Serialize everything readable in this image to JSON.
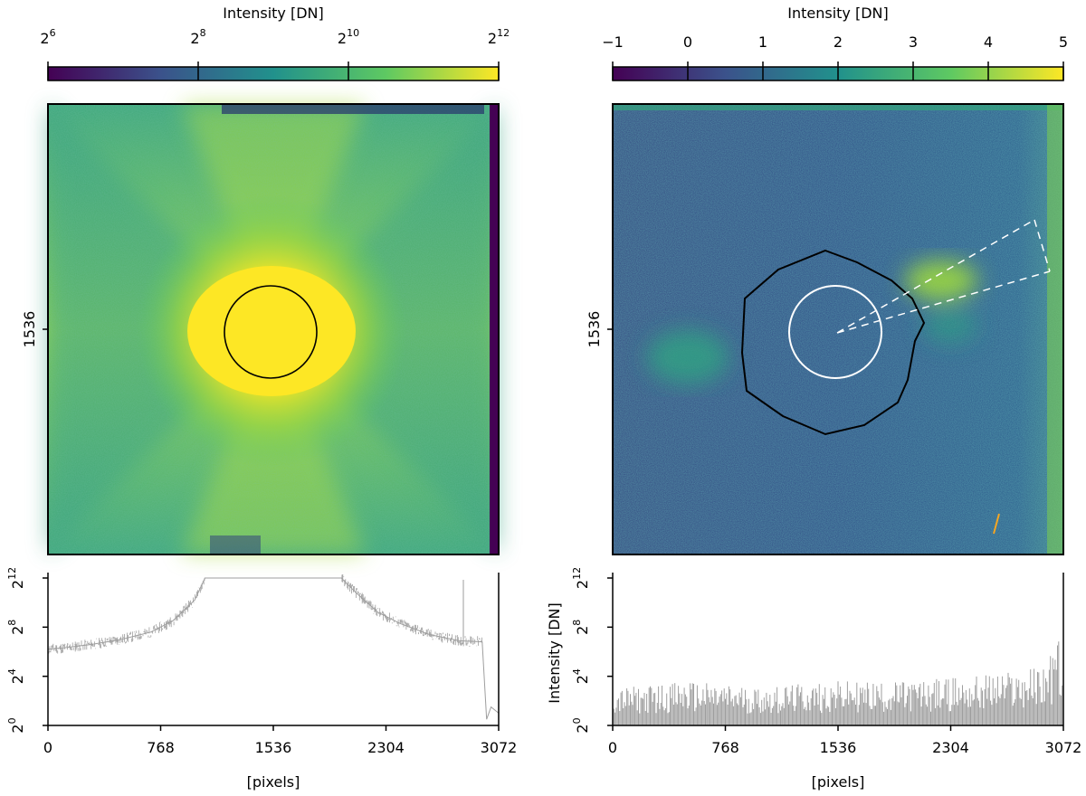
{
  "chart_data": [
    {
      "type": "heatmap",
      "id": "left-image",
      "colorbar": {
        "label": "Intensity [DN]",
        "scale": "log2",
        "range": [
          64,
          4096
        ],
        "ticks": [
          {
            "base": "2",
            "exp": "6",
            "value": 6
          },
          {
            "base": "2",
            "exp": "8",
            "value": 8
          },
          {
            "base": "2",
            "exp": "10",
            "value": 10
          },
          {
            "base": "2",
            "exp": "12",
            "value": 12
          }
        ],
        "colormap": [
          "#440154",
          "#3b528b",
          "#21918c",
          "#5ec962",
          "#fde725"
        ]
      },
      "yticks": [
        "1536"
      ],
      "xlim": [
        0,
        3072
      ],
      "ylim": [
        0,
        3072
      ],
      "annotations": [
        "black circle centered at (1536, 1536)"
      ]
    },
    {
      "type": "line",
      "id": "left-profile",
      "xlabel": "[pixels]",
      "ylabel": "",
      "xticks": [
        "0",
        "768",
        "1536",
        "2304",
        "3072"
      ],
      "yticks": [
        {
          "base": "2",
          "exp": "0",
          "value": 0
        },
        {
          "base": "2",
          "exp": "4",
          "value": 4
        },
        {
          "base": "2",
          "exp": "8",
          "value": 8
        },
        {
          "base": "2",
          "exp": "12",
          "value": 12
        }
      ],
      "xlim": [
        0,
        3072
      ],
      "ylim_log2": [
        0,
        12
      ],
      "series": [
        {
          "name": "profile",
          "color": "#9e9e9e",
          "x": [
            0,
            100,
            300,
            500,
            700,
            850,
            1000,
            1070,
            2000,
            2100,
            2250,
            2400,
            2600,
            2800,
            2960,
            2990,
            3020,
            3072
          ],
          "y_log2": [
            6.2,
            6.3,
            6.6,
            7.0,
            7.6,
            8.5,
            10.2,
            12.0,
            12.0,
            10.8,
            9.2,
            8.3,
            7.4,
            6.9,
            6.8,
            0.5,
            1.5,
            1.0
          ]
        }
      ]
    },
    {
      "type": "heatmap",
      "id": "right-image",
      "colorbar": {
        "label": "Intensity [DN]",
        "scale": "linear",
        "range": [
          -1,
          5
        ],
        "ticks": [
          {
            "text": "−1",
            "value": -1
          },
          {
            "text": "0",
            "value": 0
          },
          {
            "text": "1",
            "value": 1
          },
          {
            "text": "2",
            "value": 2
          },
          {
            "text": "3",
            "value": 3
          },
          {
            "text": "4",
            "value": 4
          },
          {
            "text": "5",
            "value": 5
          }
        ],
        "colormap": [
          "#440154",
          "#3b528b",
          "#21918c",
          "#5ec962",
          "#fde725"
        ]
      },
      "yticks": [
        "1536"
      ],
      "xlim": [
        0,
        3072
      ],
      "ylim": [
        0,
        3072
      ],
      "annotations": [
        "white circle centered at (1536, 1536)",
        "black irregular contour",
        "white dashed wedge toward upper right"
      ]
    },
    {
      "type": "bar",
      "id": "right-profile",
      "xlabel": "[pixels]",
      "ylabel": "Intensity [DN]",
      "xticks": [
        "0",
        "768",
        "1536",
        "2304",
        "3072"
      ],
      "yticks": [
        {
          "base": "2",
          "exp": "0",
          "value": 0
        },
        {
          "base": "2",
          "exp": "4",
          "value": 4
        },
        {
          "base": "2",
          "exp": "8",
          "value": 8
        },
        {
          "base": "2",
          "exp": "12",
          "value": 12
        }
      ],
      "xlim": [
        0,
        3072
      ],
      "ylim_log2": [
        0,
        12
      ],
      "series": [
        {
          "name": "profile",
          "color": "#9e9e9e",
          "x": [
            0,
            500,
            1000,
            1536,
            2000,
            2500,
            2900,
            3000,
            3050,
            3072
          ],
          "y_log2": [
            2.5,
            3.0,
            2.6,
            3.0,
            3.0,
            3.4,
            4.0,
            5.0,
            6.5,
            1.0
          ]
        }
      ]
    }
  ]
}
